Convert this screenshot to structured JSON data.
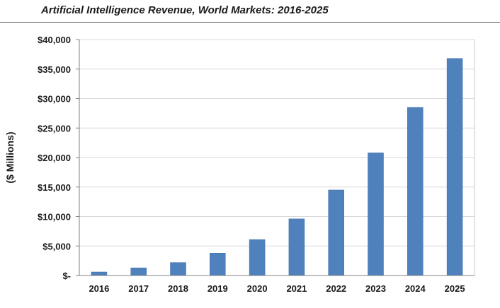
{
  "title": "Artificial Intelligence Revenue, World Markets: 2016-2025",
  "chart_data": {
    "type": "bar",
    "title": "Artificial Intelligence Revenue, World Markets: 2016-2025",
    "xlabel": "",
    "ylabel": "($ Millions)",
    "categories": [
      "2016",
      "2017",
      "2018",
      "2019",
      "2020",
      "2021",
      "2022",
      "2023",
      "2024",
      "2025"
    ],
    "values": [
      600,
      1300,
      2200,
      3800,
      6100,
      9600,
      14500,
      20800,
      28500,
      36800
    ],
    "ylim": [
      0,
      40000
    ],
    "yticks": [
      0,
      5000,
      10000,
      15000,
      20000,
      25000,
      30000,
      35000,
      40000
    ],
    "ytick_labels": [
      "$-",
      "$5,000",
      "$10,000",
      "$15,000",
      "$20,000",
      "$25,000",
      "$30,000",
      "$35,000",
      "$40,000"
    ],
    "grid": true,
    "legend": "none",
    "bar_color": "#4f81bd",
    "bar_edge_color": "#3f6ea8",
    "grid_color": "#d9d9d9",
    "axis_color": "#808080"
  }
}
